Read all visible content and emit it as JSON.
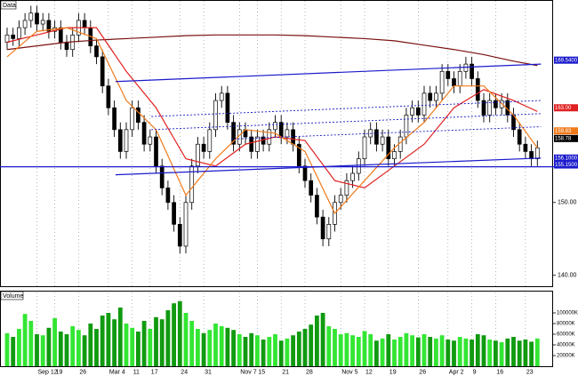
{
  "chart_data": [
    {
      "type": "candlestick",
      "title": "Data",
      "categories": [
        null,
        null,
        null,
        null,
        null,
        "Sep 12",
        null,
        null,
        "19",
        null,
        null,
        null,
        "26",
        null,
        null,
        null,
        null,
        "Mar 4",
        null,
        null,
        null,
        "11",
        null,
        null,
        "17",
        null,
        null,
        null,
        null,
        "24",
        null,
        null,
        null,
        "31",
        null,
        null,
        null,
        null,
        null,
        "Nov 7",
        null,
        null,
        "15",
        null,
        null,
        null,
        "21",
        null,
        null,
        null,
        "28",
        null,
        null,
        null,
        null,
        null,
        "Nov 5",
        null,
        null,
        null,
        "12",
        null,
        null,
        null,
        "19",
        null,
        null,
        null,
        null,
        "26",
        null,
        null,
        null,
        null,
        "Apr 2",
        null,
        null,
        null,
        "9",
        null,
        null,
        null,
        "16",
        null,
        null,
        null,
        null,
        "23",
        null,
        null
      ],
      "open": [
        172,
        173,
        172.5,
        174,
        175,
        176,
        174.5,
        175,
        173.5,
        174,
        172,
        171,
        173,
        175,
        174,
        171.5,
        170,
        166,
        163,
        160,
        157,
        160,
        163,
        161,
        158,
        159,
        155,
        152,
        150,
        147,
        144,
        150,
        155,
        158,
        157,
        160,
        164,
        165,
        161,
        158,
        160,
        159,
        157,
        159,
        158,
        160,
        161,
        159,
        160,
        158,
        155,
        153,
        151,
        148,
        145,
        147,
        150,
        151,
        153,
        154,
        156,
        159,
        160,
        158,
        159,
        156,
        157,
        159,
        162,
        163,
        162,
        165,
        164,
        165,
        168,
        167,
        166,
        168,
        169,
        167,
        164,
        162,
        164,
        163,
        164,
        162,
        160,
        158,
        157,
        156
      ],
      "high": [
        174,
        174,
        175,
        176,
        177,
        177,
        176,
        176,
        175,
        175,
        173,
        174,
        176,
        176,
        175,
        172.5,
        171,
        167,
        164,
        161,
        161,
        164,
        164,
        162,
        160,
        160,
        156,
        153,
        151,
        148,
        151,
        156,
        159,
        159,
        161,
        165,
        166,
        166,
        162,
        161,
        161,
        160,
        160,
        160,
        161,
        162,
        162,
        161,
        161,
        159,
        156,
        154,
        152,
        149,
        148,
        151,
        152,
        154,
        155,
        157,
        160,
        161,
        161,
        160,
        160,
        158,
        160,
        163,
        164,
        164,
        166,
        166,
        166,
        169,
        169,
        168,
        169,
        170,
        170,
        168,
        165,
        165,
        165,
        165,
        165,
        163,
        161,
        159,
        158,
        158.5
      ],
      "low": [
        171,
        171.5,
        171.5,
        173,
        174,
        173.5,
        173.5,
        172.5,
        172.5,
        171,
        170,
        170,
        172,
        173,
        170.5,
        169,
        165,
        162,
        159,
        156,
        156,
        159,
        160,
        157,
        157,
        154,
        151,
        149,
        146,
        143,
        143,
        149,
        154,
        156,
        156,
        159,
        163,
        160,
        157,
        157,
        158,
        156,
        156,
        157,
        157,
        159,
        158,
        158,
        157,
        154,
        152,
        150,
        147,
        144,
        144,
        146,
        149,
        150,
        152,
        153,
        155,
        158,
        157,
        157,
        155,
        155,
        156,
        158,
        161,
        161,
        161,
        163,
        163,
        164,
        166,
        165,
        165,
        167,
        166,
        163,
        161,
        161,
        162,
        162,
        161,
        159,
        157,
        156,
        155,
        155
      ],
      "close": [
        173,
        172.5,
        174,
        175,
        176,
        174.5,
        175,
        173.5,
        174,
        172,
        171,
        173,
        175,
        174,
        171.5,
        170,
        166,
        163,
        160,
        157,
        160,
        163,
        161,
        158,
        159,
        155,
        152,
        150,
        147,
        144,
        150,
        155,
        158,
        157,
        160,
        164,
        165,
        161,
        158,
        160,
        159,
        157,
        159,
        158,
        160,
        161,
        159,
        160,
        158,
        155,
        153,
        151,
        148,
        145,
        147,
        150,
        151,
        153,
        154,
        156,
        159,
        160,
        158,
        159,
        156,
        157,
        159,
        162,
        163,
        162,
        165,
        164,
        165,
        168,
        167,
        166,
        168,
        169,
        167,
        164,
        162,
        164,
        163,
        164,
        162,
        160,
        158,
        157,
        156,
        157.5
      ],
      "up_color": "#ffffff",
      "down_color": "#000000",
      "ylim": [
        138.5,
        177.8
      ],
      "yticks": [
        {
          "value": 140,
          "label": "140.00"
        },
        {
          "value": 150,
          "label": "150.00"
        }
      ],
      "xgrid": true,
      "overlays": [
        {
          "color": "#7a1010",
          "style": "solid",
          "x": [
            0,
            5,
            10,
            15,
            20,
            25,
            30,
            35,
            40,
            45,
            50,
            55,
            60,
            65,
            70,
            75,
            80,
            85,
            89
          ],
          "values": [
            171,
            171.5,
            172,
            172.3,
            172.5,
            172.7,
            172.9,
            173,
            173,
            173,
            172.9,
            172.7,
            172.5,
            172.2,
            171.6,
            171,
            170.3,
            169.4,
            168.8
          ]
        },
        {
          "color": "#e02020",
          "style": "solid",
          "x": [
            0,
            5,
            10,
            15,
            20,
            25,
            30,
            35,
            40,
            45,
            50,
            55,
            60,
            65,
            70,
            75,
            80,
            85,
            89
          ],
          "values": [
            172,
            173,
            174,
            174,
            168,
            163,
            156,
            155,
            158,
            159,
            158.5,
            153,
            152,
            155,
            158,
            163,
            165.5,
            164,
            162.5
          ]
        },
        {
          "color": "#f07a1a",
          "style": "solid",
          "x": [
            0,
            5,
            10,
            15,
            20,
            25,
            30,
            35,
            40,
            45,
            50,
            55,
            60,
            65,
            70,
            75,
            80,
            85,
            89
          ],
          "values": [
            170,
            173.5,
            174,
            172.5,
            164,
            160,
            151,
            156,
            160,
            159.5,
            157,
            148.5,
            153,
            157.5,
            161,
            166,
            166,
            162,
            157.5
          ]
        },
        {
          "color": "#1a1acc",
          "style": "solid",
          "x": [
            18.2,
            89.6
          ],
          "values": [
            166.6,
            169.0
          ]
        },
        {
          "color": "#1a1acc",
          "style": "solid",
          "x": [
            18.2,
            89.6
          ],
          "values": [
            153.8,
            156.1
          ]
        },
        {
          "color": "#1a1acc",
          "style": "solid",
          "x": [
            -1.2,
            95.8
          ],
          "values": [
            154.9,
            154.9
          ]
        },
        {
          "color": "#1a1acc",
          "style": "dotted",
          "x": [
            24.2,
            89.6
          ],
          "values": [
            161.8,
            164.0
          ]
        },
        {
          "color": "#1a1acc",
          "style": "dotted",
          "x": [
            24.2,
            89.6
          ],
          "values": [
            160.0,
            162.2
          ]
        },
        {
          "color": "#1a1acc",
          "style": "dotted",
          "x": [
            37.6,
            89.6
          ],
          "values": [
            158.7,
            160.4
          ]
        }
      ],
      "price_labels": [
        {
          "value": 169.54,
          "label": "169.5400",
          "color": "#1a1acc"
        },
        {
          "value": 163.0,
          "label": "163.00",
          "color": "#e02020"
        },
        {
          "value": 159.83,
          "label": "159.83",
          "color": "#f07a1a"
        },
        {
          "value": 158.78,
          "label": "158.78",
          "color": "#000000"
        },
        {
          "value": 156.1,
          "label": "156.1000",
          "color": "#1a1acc"
        },
        {
          "value": 155.15,
          "label": "155.1500",
          "color": "#1a1acc"
        }
      ]
    },
    {
      "type": "bar",
      "title": "Volume",
      "values": [
        62000,
        55000,
        70000,
        98000,
        85000,
        60000,
        58000,
        72000,
        90000,
        65000,
        60000,
        75000,
        68000,
        58000,
        80000,
        70000,
        95000,
        100000,
        88000,
        110000,
        80000,
        72000,
        65000,
        85000,
        70000,
        92000,
        88000,
        105000,
        118000,
        122000,
        100000,
        85000,
        70000,
        62000,
        68000,
        80000,
        75000,
        72000,
        68000,
        60000,
        55000,
        62000,
        58000,
        50000,
        55000,
        60000,
        48000,
        52000,
        58000,
        65000,
        70000,
        78000,
        95000,
        100000,
        75000,
        70000,
        60000,
        62000,
        58000,
        55000,
        66000,
        60000,
        48000,
        52000,
        60000,
        50000,
        55000,
        62000,
        58000,
        54000,
        60000,
        55000,
        52000,
        58000,
        50000,
        48000,
        55000,
        52000,
        50000,
        60000,
        58000,
        50000,
        48000,
        45000,
        52000,
        55000,
        48000,
        50000,
        46000,
        52000
      ],
      "up_color": "#33e633",
      "down_color": "#109a10",
      "ylim": [
        0,
        140000
      ],
      "yticks": [
        {
          "value": 20000,
          "label": "20000K"
        },
        {
          "value": 40000,
          "label": "40000K"
        },
        {
          "value": 60000,
          "label": "60000K"
        },
        {
          "value": 80000,
          "label": "80000K"
        },
        {
          "value": 100000,
          "label": "100000K"
        }
      ]
    }
  ]
}
